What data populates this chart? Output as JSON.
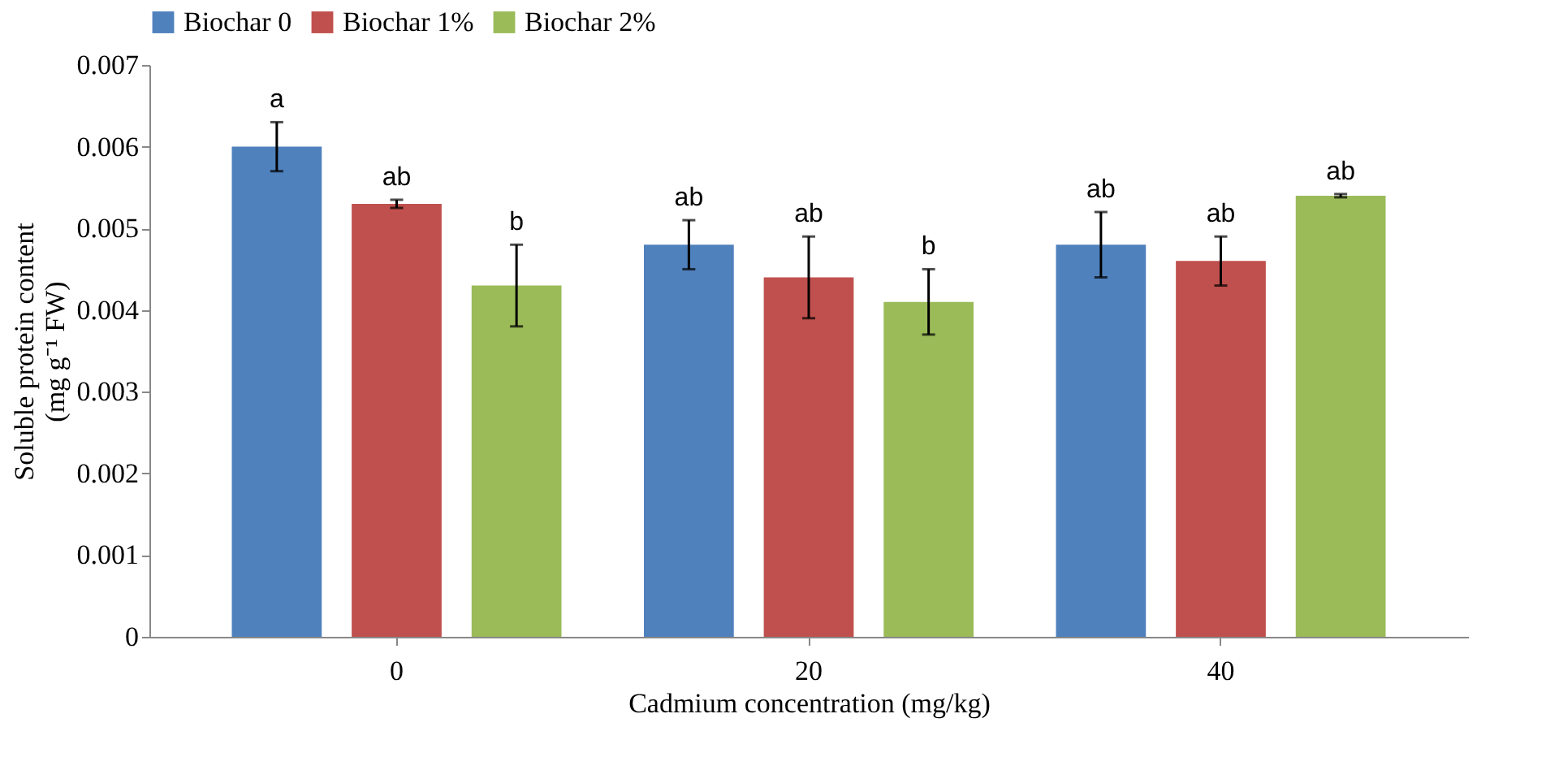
{
  "chart_data": {
    "type": "bar",
    "xlabel": "Cadmium concentration (mg/kg)",
    "ylabel": "Soluble protein content\n(mg g⁻¹ FW)",
    "categories": [
      "0",
      "20",
      "40"
    ],
    "series": [
      {
        "name": "Biochar 0",
        "color": "#4f81bd",
        "values": [
          0.006,
          0.0048,
          0.0048
        ],
        "errors": [
          0.0003,
          0.0003,
          0.0004
        ],
        "value_labels": [
          "a",
          "ab",
          "ab"
        ]
      },
      {
        "name": "Biochar 1%",
        "color": "#c0504d",
        "values": [
          0.0053,
          0.0044,
          0.0046
        ],
        "errors": [
          5e-05,
          0.0005,
          0.0003
        ],
        "value_labels": [
          "ab",
          "ab",
          "ab"
        ]
      },
      {
        "name": "Biochar 2%",
        "color": "#9bbb59",
        "values": [
          0.0043,
          0.0041,
          0.0054
        ],
        "errors": [
          0.0005,
          0.0004,
          2e-05
        ],
        "value_labels": [
          "b",
          "b",
          "ab"
        ]
      }
    ],
    "ylim": [
      0,
      0.007
    ],
    "yticks": [
      0,
      0.001,
      0.002,
      0.003,
      0.004,
      0.005,
      0.006,
      0.007
    ],
    "grid": false,
    "legend": "top"
  }
}
